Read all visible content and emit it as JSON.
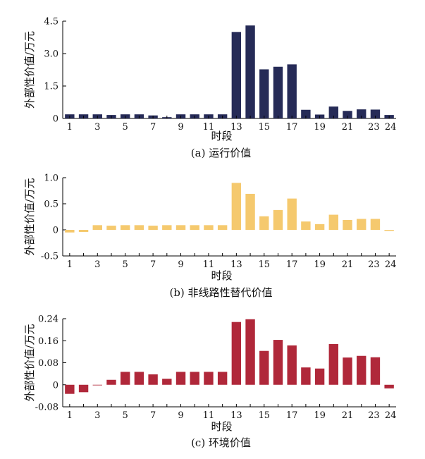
{
  "chart_data": [
    {
      "type": "bar",
      "caption": "(a) 运行价值",
      "xlabel": "时段",
      "ylabel": "外部性价值/万元",
      "x_tick_labels": [
        "1",
        "3",
        "5",
        "7",
        "9",
        "11",
        "13",
        "15",
        "17",
        "19",
        "21",
        "23",
        "24"
      ],
      "y_tick_labels": [
        "0",
        "1.5",
        "3.0",
        "4.5"
      ],
      "ylim": [
        0,
        4.5
      ],
      "color": "#262b57",
      "categories": [
        1,
        2,
        3,
        4,
        5,
        6,
        7,
        8,
        9,
        10,
        11,
        12,
        13,
        14,
        15,
        16,
        17,
        18,
        19,
        20,
        21,
        22,
        23,
        24
      ],
      "values": [
        0.19,
        0.19,
        0.19,
        0.16,
        0.19,
        0.19,
        0.14,
        0.06,
        0.19,
        0.19,
        0.19,
        0.19,
        4.0,
        4.3,
        2.27,
        2.39,
        2.5,
        0.4,
        0.18,
        0.55,
        0.35,
        0.42,
        0.41,
        0.16
      ]
    },
    {
      "type": "bar",
      "caption": "(b) 非线路性替代价值",
      "xlabel": "时段",
      "ylabel": "外部性价值/万元",
      "x_tick_labels": [
        "1",
        "3",
        "5",
        "7",
        "9",
        "11",
        "13",
        "15",
        "17",
        "19",
        "21",
        "23",
        "24"
      ],
      "y_tick_labels": [
        "-0.5",
        "0",
        "0.5",
        "1.0"
      ],
      "ylim": [
        -0.5,
        1.0
      ],
      "color": "#f5c96e",
      "categories": [
        1,
        2,
        3,
        4,
        5,
        6,
        7,
        8,
        9,
        10,
        11,
        12,
        13,
        14,
        15,
        16,
        17,
        18,
        19,
        20,
        21,
        22,
        23,
        24
      ],
      "values": [
        -0.05,
        -0.04,
        0.09,
        0.08,
        0.09,
        0.09,
        0.08,
        0.09,
        0.09,
        0.09,
        0.09,
        0.09,
        0.9,
        0.69,
        0.26,
        0.38,
        0.6,
        0.16,
        0.11,
        0.29,
        0.19,
        0.21,
        0.21,
        -0.02
      ]
    },
    {
      "type": "bar",
      "caption": "(c) 环境价值",
      "xlabel": "时段",
      "ylabel": "外部性价值/万元",
      "x_tick_labels": [
        "1",
        "3",
        "5",
        "7",
        "9",
        "11",
        "13",
        "15",
        "17",
        "19",
        "21",
        "23",
        "24"
      ],
      "y_tick_labels": [
        "-0.08",
        "0",
        "0.08",
        "0.16",
        "0.24"
      ],
      "ylim": [
        -0.08,
        0.24
      ],
      "color": "#b0283a",
      "categories": [
        1,
        2,
        3,
        4,
        5,
        6,
        7,
        8,
        9,
        10,
        11,
        12,
        13,
        14,
        15,
        16,
        17,
        18,
        19,
        20,
        21,
        22,
        23,
        24
      ],
      "values": [
        -0.033,
        -0.027,
        -0.002,
        0.018,
        0.047,
        0.047,
        0.038,
        0.022,
        0.047,
        0.047,
        0.047,
        0.047,
        0.228,
        0.238,
        0.123,
        0.163,
        0.143,
        0.063,
        0.059,
        0.148,
        0.099,
        0.105,
        0.1,
        -0.013
      ]
    }
  ]
}
